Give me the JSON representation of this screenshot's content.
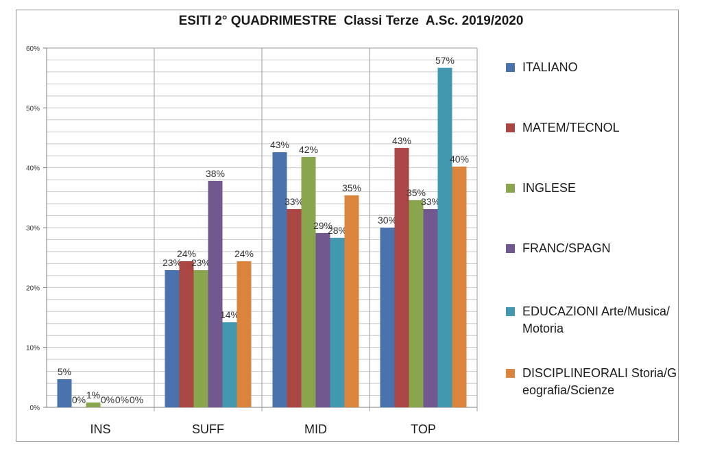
{
  "chart_data": {
    "type": "bar",
    "title": "ESITI 2° QUADRIMESTRE  Classi Terze  A.Sc. 2019/2020",
    "xlabel": "",
    "ylabel": "",
    "categories": [
      "INS",
      "SUFF",
      "MID",
      "TOP"
    ],
    "ylim": [
      0,
      60
    ],
    "yticks": [
      "0%",
      "10%",
      "20%",
      "30%",
      "40%",
      "50%",
      "60%"
    ],
    "grid": true,
    "legend_position": "right",
    "series": [
      {
        "name": "ITALIANO",
        "color": "#4a72ad",
        "values": [
          4.7,
          22.9,
          42.6,
          30.0
        ],
        "labels": [
          "5%",
          "23%",
          "43%",
          "30%"
        ]
      },
      {
        "name": "MATEM/TECNOL",
        "color": "#aa4744",
        "values": [
          0,
          24.4,
          33.1,
          43.3
        ],
        "labels": [
          "0%",
          "24%",
          "33%",
          "43%"
        ]
      },
      {
        "name": "INGLESE",
        "color": "#89a54e",
        "values": [
          0.8,
          22.9,
          41.8,
          34.6
        ],
        "labels": [
          "1%",
          "23%",
          "42%",
          "35%"
        ]
      },
      {
        "name": "FRANC/SPAGN",
        "color": "#71588f",
        "values": [
          0,
          37.8,
          29.1,
          33.1
        ],
        "labels": [
          "0%",
          "38%",
          "29%",
          "33%"
        ]
      },
      {
        "name": "EDUCAZIONI Arte/Musica/Motoria",
        "color": "#4198af",
        "values": [
          0,
          14.2,
          28.3,
          56.7
        ],
        "labels": [
          "0%",
          "14%",
          "28%",
          "57%"
        ]
      },
      {
        "name": "DISCIPLINEORALI Storia/Geografia/Scienze",
        "color": "#db843d",
        "values": [
          0,
          24.4,
          35.4,
          40.2
        ],
        "labels": [
          "0%",
          "24%",
          "35%",
          "40%"
        ]
      }
    ]
  }
}
